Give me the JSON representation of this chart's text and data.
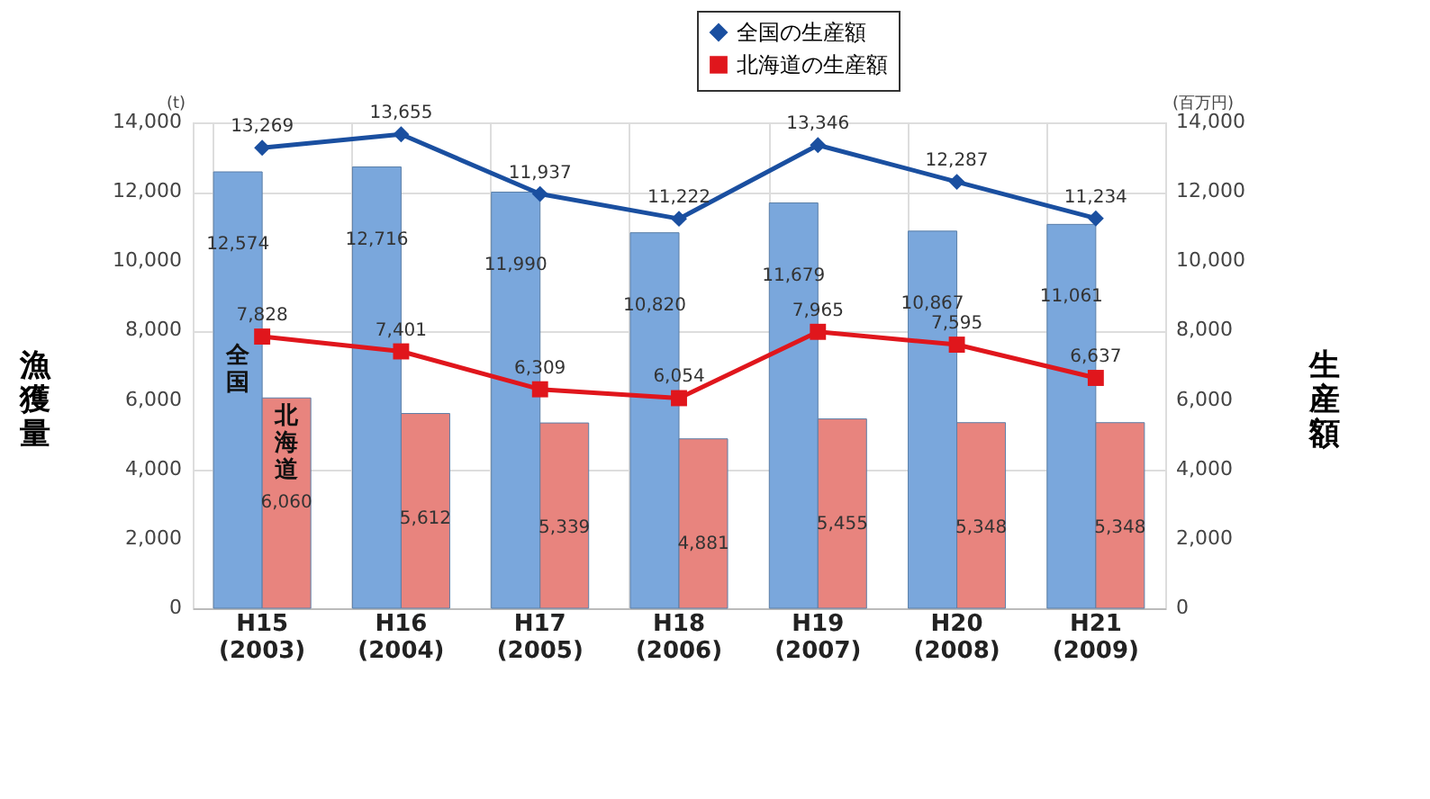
{
  "chart_data": {
    "type": "bar",
    "categories": [
      "H15\n(2003)",
      "H16\n(2004)",
      "H17\n(2005)",
      "H18\n(2006)",
      "H19\n(2007)",
      "H20\n(2008)",
      "H21\n(2009)"
    ],
    "series": [
      {
        "name": "全国",
        "color": "#7aa7dc",
        "values": [
          12574,
          12716,
          11990,
          10820,
          11679,
          10867,
          11061
        ],
        "value_labels": [
          "12,574",
          "12,716",
          "11,990",
          "10,820",
          "11,679",
          "10,867",
          "11,061"
        ]
      },
      {
        "name": "北海道",
        "color": "#e8847e",
        "values": [
          6060,
          5612,
          5339,
          4881,
          5455,
          5348,
          5348
        ],
        "value_labels": [
          "6,060",
          "5,612",
          "5,339",
          "4,881",
          "5,455",
          "5,348",
          "5,348"
        ]
      },
      {
        "name": "全国の生産額",
        "type": "line",
        "axis": "y2",
        "color": "#1a4fa0",
        "marker": "diamond",
        "values": [
          13269,
          13655,
          11937,
          11222,
          13346,
          12287,
          11234
        ],
        "value_labels": [
          "13,269",
          "13,655",
          "11,937",
          "11,222",
          "13,346",
          "12,287",
          "11,234"
        ]
      },
      {
        "name": "北海道の生産額",
        "type": "line",
        "axis": "y2",
        "color": "#e0161c",
        "marker": "square",
        "values": [
          7828,
          7401,
          6309,
          6054,
          7965,
          7595,
          6637
        ],
        "value_labels": [
          "7,828",
          "7,401",
          "6,309",
          "6,054",
          "7,965",
          "7,595",
          "6,637"
        ]
      }
    ],
    "ylabel": "漁獲量",
    "y2label": "生産額",
    "ylim": [
      0,
      14000
    ],
    "yticks": [
      0,
      {
        "value": 2000,
        "label": "2,000"
      },
      {
        "value": 4000,
        "label": "4,000"
      },
      {
        "value": 6000,
        "label": "6,000"
      },
      {
        "value": 8000,
        "label": "8,000"
      },
      {
        "value": 10000,
        "label": "10,000"
      },
      {
        "value": 12000,
        "label": "12,000"
      },
      {
        "value": 14000,
        "label": "14,000"
      }
    ],
    "y2lim": [
      0,
      14000
    ],
    "y2ticks": [
      0,
      {
        "value": 2000,
        "label": "2,000"
      },
      {
        "value": 4000,
        "label": "4,000"
      },
      {
        "value": 6000,
        "label": "6,000"
      },
      {
        "value": 8000,
        "label": "8,000"
      },
      {
        "value": 10000,
        "label": "10,000"
      },
      {
        "value": 12000,
        "label": "12,000"
      },
      {
        "value": 14000,
        "label": "14,000"
      }
    ],
    "annotations": [
      "(t)",
      "(百万円)"
    ],
    "grid": true,
    "legend": "top right"
  }
}
